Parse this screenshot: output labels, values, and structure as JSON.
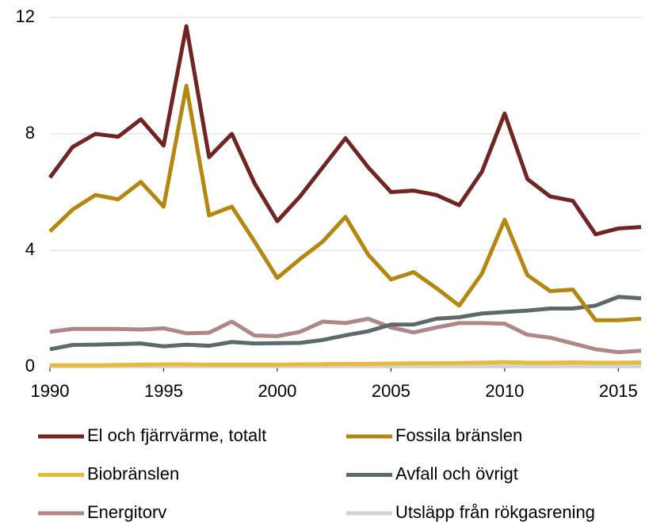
{
  "chart_data": {
    "type": "line",
    "x": [
      1990,
      1991,
      1992,
      1993,
      1994,
      1995,
      1996,
      1997,
      1998,
      1999,
      2000,
      2001,
      2002,
      2003,
      2004,
      2005,
      2006,
      2007,
      2008,
      2009,
      2010,
      2011,
      2012,
      2013,
      2014,
      2015,
      2016
    ],
    "series": [
      {
        "name": "El och fjärrvärme, totalt",
        "color": "#722422",
        "values": [
          6.5,
          7.55,
          8.0,
          7.9,
          8.5,
          7.6,
          11.7,
          7.2,
          8.0,
          6.3,
          5.0,
          5.85,
          6.85,
          7.85,
          6.85,
          6.0,
          6.05,
          5.9,
          5.55,
          6.7,
          8.7,
          6.45,
          5.85,
          5.7,
          4.55,
          4.75,
          4.8
        ]
      },
      {
        "name": "Fossila bränslen",
        "color": "#b5870f",
        "values": [
          4.65,
          5.4,
          5.9,
          5.75,
          6.35,
          5.5,
          9.65,
          5.2,
          5.5,
          4.3,
          3.05,
          3.7,
          4.3,
          5.15,
          3.85,
          3.0,
          3.25,
          2.7,
          2.1,
          3.2,
          5.05,
          3.15,
          2.6,
          2.65,
          1.6,
          1.6,
          1.65
        ]
      },
      {
        "name": "Biobränslen",
        "color": "#e8b93a",
        "values": [
          0.05,
          0.05,
          0.05,
          0.06,
          0.07,
          0.08,
          0.08,
          0.07,
          0.07,
          0.07,
          0.07,
          0.08,
          0.09,
          0.1,
          0.1,
          0.11,
          0.12,
          0.12,
          0.13,
          0.14,
          0.16,
          0.14,
          0.14,
          0.15,
          0.14,
          0.14,
          0.15
        ]
      },
      {
        "name": "Avfall och övrigt",
        "color": "#5c6a69",
        "values": [
          0.6,
          0.75,
          0.76,
          0.78,
          0.8,
          0.7,
          0.76,
          0.72,
          0.85,
          0.8,
          0.81,
          0.82,
          0.92,
          1.08,
          1.22,
          1.45,
          1.45,
          1.65,
          1.7,
          1.83,
          1.88,
          1.93,
          2.0,
          2.0,
          2.1,
          2.4,
          2.35
        ]
      },
      {
        "name": "Energitorv",
        "color": "#b08787",
        "values": [
          1.2,
          1.3,
          1.3,
          1.3,
          1.28,
          1.32,
          1.15,
          1.17,
          1.55,
          1.07,
          1.05,
          1.2,
          1.55,
          1.5,
          1.65,
          1.35,
          1.18,
          1.35,
          1.5,
          1.5,
          1.48,
          1.1,
          1.0,
          0.8,
          0.6,
          0.5,
          0.55
        ]
      },
      {
        "name": "Utsläpp från rökgasrening",
        "color": "#d3d3d3",
        "values": [
          0.02,
          0.02,
          0.02,
          0.02,
          0.02,
          0.02,
          0.02,
          0.02,
          0.02,
          0.02,
          0.02,
          0.02,
          0.02,
          0.02,
          0.02,
          0.02,
          0.02,
          0.02,
          0.02,
          0.02,
          0.02,
          0.02,
          0.02,
          0.02,
          0.02,
          0.02,
          0.02
        ]
      }
    ],
    "xlim": [
      1990,
      2016
    ],
    "xticks": [
      1990,
      1995,
      2000,
      2005,
      2010,
      2015
    ],
    "ylim": [
      0,
      12
    ],
    "yticks": [
      0,
      4,
      8,
      12
    ],
    "grid": true
  }
}
